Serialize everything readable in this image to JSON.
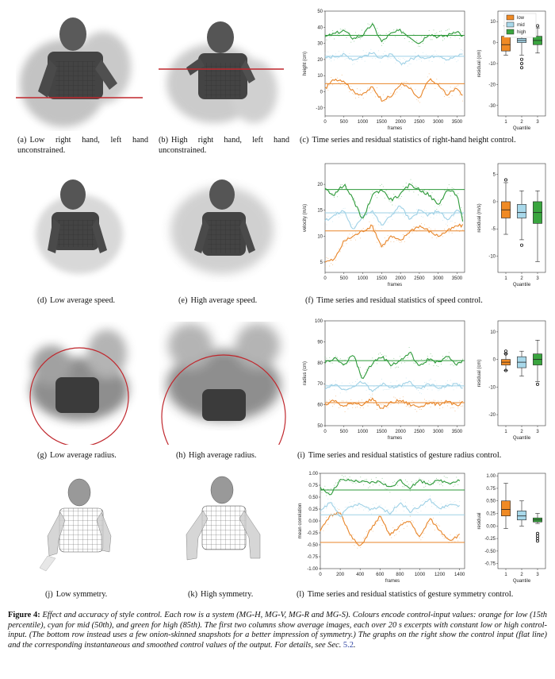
{
  "colors": {
    "low": "#e8862a",
    "mid": "#9fd1e6",
    "high": "#2e9a3a",
    "redline": "#c0272d",
    "box_low": "#f08a24",
    "box_mid": "#a8d8ea",
    "box_high": "#3aa53f"
  },
  "rows": [
    {
      "name": "height",
      "captions": {
        "a": {
          "label": "(a)",
          "text": "Low right hand, left hand unconstrained."
        },
        "b": {
          "label": "(b)",
          "text": "High right hand, left hand unconstrained."
        },
        "c": {
          "label": "(c)",
          "text": "Time series and residual statistics of right-hand height control."
        }
      }
    },
    {
      "name": "speed",
      "captions": {
        "a": {
          "label": "(d)",
          "text": "Low average speed."
        },
        "b": {
          "label": "(e)",
          "text": "High average speed."
        },
        "c": {
          "label": "(f)",
          "text": "Time series and residual statistics of speed control."
        }
      }
    },
    {
      "name": "radius",
      "captions": {
        "a": {
          "label": "(g)",
          "text": "Low average radius."
        },
        "b": {
          "label": "(h)",
          "text": "High average radius."
        },
        "c": {
          "label": "(i)",
          "text": "Time series and residual statistics of gesture radius control."
        }
      }
    },
    {
      "name": "symmetry",
      "captions": {
        "a": {
          "label": "(j)",
          "text": "Low symmetry."
        },
        "b": {
          "label": "(k)",
          "text": "High symmetry."
        },
        "c": {
          "label": "(l)",
          "text": "Time series and residual statistics of gesture symmetry control."
        }
      }
    }
  ],
  "chart_data": [
    {
      "type": "line",
      "ylabel": "height (cm)",
      "xlabel": "frames",
      "xlim": [
        0,
        3700
      ],
      "ylim": [
        -15,
        50
      ],
      "xticks": [
        "0",
        "500",
        "1000",
        "1500",
        "2000",
        "2500",
        "3000",
        "3500"
      ],
      "yticks": [
        "50",
        "40",
        "30",
        "20",
        "10",
        "0",
        "-10"
      ],
      "ytick_values": [
        50,
        40,
        30,
        20,
        10,
        0,
        -10
      ],
      "xtick_values": [
        0,
        500,
        1000,
        1500,
        2000,
        2500,
        3000,
        3500
      ],
      "controls": {
        "low": 5,
        "mid": 22,
        "high": 35
      },
      "series": [
        {
          "level": "low",
          "x": [
            0,
            250,
            500,
            750,
            1000,
            1250,
            1500,
            1750,
            2000,
            2250,
            2500,
            2750,
            3000,
            3250,
            3500,
            3650
          ],
          "y": [
            2,
            8,
            7,
            0,
            -2,
            3,
            -5,
            -3,
            5,
            2,
            -5,
            8,
            4,
            -2,
            3,
            -3
          ]
        },
        {
          "level": "mid",
          "x": [
            0,
            250,
            500,
            750,
            1000,
            1250,
            1500,
            1750,
            2000,
            2250,
            2500,
            2750,
            3000,
            3250,
            3500,
            3650
          ],
          "y": [
            21,
            22,
            23,
            20,
            22,
            24,
            21,
            23,
            17,
            20,
            22,
            21,
            23,
            20,
            22,
            24
          ]
        },
        {
          "level": "high",
          "x": [
            0,
            250,
            500,
            750,
            1000,
            1250,
            1500,
            1750,
            2000,
            2250,
            2500,
            2750,
            3000,
            3250,
            3500,
            3650
          ],
          "y": [
            34,
            36,
            38,
            33,
            35,
            42,
            31,
            36,
            38,
            34,
            30,
            36,
            34,
            35,
            38,
            34
          ]
        }
      ],
      "box": {
        "ylabel": "residual (cm)",
        "xlabel": "Quantile",
        "ylim": [
          -35,
          15
        ],
        "yticks": [
          "10",
          "0",
          "-10",
          "-20",
          "-30"
        ],
        "ytick_values": [
          10,
          0,
          -10,
          -20,
          -30
        ],
        "xticks": [
          "1",
          "2",
          "3"
        ],
        "boxes": [
          {
            "level": "low",
            "wl": -6,
            "q1": -4,
            "med": -1,
            "q3": 3,
            "wh": 8,
            "outliers": []
          },
          {
            "level": "mid",
            "wl": -6,
            "q1": 0,
            "med": 1,
            "q3": 2,
            "wh": 7,
            "outliers": [
              -8,
              -10,
              -12
            ]
          },
          {
            "level": "high",
            "wl": -5,
            "q1": -1,
            "med": 1,
            "q3": 3,
            "wh": 7,
            "outliers": [
              8
            ]
          }
        ]
      }
    },
    {
      "type": "line",
      "ylabel": "velocity (m/s)",
      "xlabel": "frames",
      "xlim": [
        0,
        3700
      ],
      "ylim": [
        3,
        24
      ],
      "xticks": [
        "0",
        "500",
        "1000",
        "1500",
        "2000",
        "2500",
        "3000",
        "3500"
      ],
      "yticks": [
        "20",
        "15",
        "10",
        "5"
      ],
      "ytick_values": [
        20,
        15,
        10,
        5
      ],
      "xtick_values": [
        0,
        500,
        1000,
        1500,
        2000,
        2500,
        3000,
        3500
      ],
      "controls": {
        "low": 11,
        "mid": 14.5,
        "high": 19
      },
      "series": [
        {
          "level": "low",
          "x": [
            0,
            250,
            500,
            750,
            1000,
            1250,
            1500,
            1750,
            2000,
            2250,
            2500,
            2750,
            3000,
            3250,
            3500,
            3650
          ],
          "y": [
            5,
            5.5,
            9,
            10,
            11,
            12,
            8,
            10,
            9,
            11,
            12,
            11,
            10,
            11,
            12,
            12
          ]
        },
        {
          "level": "mid",
          "x": [
            0,
            250,
            500,
            750,
            1000,
            1250,
            1500,
            1750,
            2000,
            2250,
            2500,
            2750,
            3000,
            3250,
            3500,
            3650
          ],
          "y": [
            13,
            14,
            15,
            11,
            14,
            15,
            12,
            14,
            16,
            13,
            15,
            14,
            15,
            13,
            15,
            14
          ]
        },
        {
          "level": "high",
          "x": [
            0,
            250,
            500,
            750,
            1000,
            1250,
            1500,
            1750,
            2000,
            2250,
            2500,
            2750,
            3000,
            3250,
            3500,
            3650
          ],
          "y": [
            19,
            18,
            20,
            17,
            13,
            18,
            19,
            17,
            18,
            20,
            19,
            18,
            16,
            19,
            18,
            13
          ]
        }
      ],
      "box": {
        "ylabel": "residual (m/s)",
        "xlabel": "Quantile",
        "ylim": [
          -13,
          7
        ],
        "yticks": [
          "5",
          "0",
          "-5",
          "-10"
        ],
        "ytick_values": [
          5,
          0,
          -5,
          -10
        ],
        "xticks": [
          "1",
          "2",
          "3"
        ],
        "boxes": [
          {
            "level": "low",
            "wl": -6,
            "q1": -3,
            "med": -1.5,
            "q3": 0,
            "wh": 3.5,
            "outliers": [
              4
            ]
          },
          {
            "level": "mid",
            "wl": -7,
            "q1": -3,
            "med": -2,
            "q3": -0.5,
            "wh": 2,
            "outliers": [
              -8
            ]
          },
          {
            "level": "high",
            "wl": -11,
            "q1": -4,
            "med": -2,
            "q3": 0,
            "wh": 2,
            "outliers": []
          }
        ]
      }
    },
    {
      "type": "line",
      "ylabel": "radius (cm)",
      "xlabel": "frames",
      "xlim": [
        0,
        3700
      ],
      "ylim": [
        50,
        100
      ],
      "xticks": [
        "0",
        "500",
        "1000",
        "1500",
        "2000",
        "2500",
        "3000",
        "3500"
      ],
      "yticks": [
        "100",
        "90",
        "80",
        "70",
        "60",
        "50"
      ],
      "ytick_values": [
        100,
        90,
        80,
        70,
        60,
        50
      ],
      "xtick_values": [
        0,
        500,
        1000,
        1500,
        2000,
        2500,
        3000,
        3500
      ],
      "controls": {
        "low": 61,
        "mid": 69,
        "high": 81
      },
      "series": [
        {
          "level": "low",
          "x": [
            0,
            250,
            500,
            750,
            1000,
            1250,
            1500,
            1750,
            2000,
            2250,
            2500,
            2750,
            3000,
            3250,
            3500,
            3650
          ],
          "y": [
            60,
            62,
            59,
            61,
            60,
            63,
            58,
            61,
            62,
            60,
            59,
            61,
            60,
            62,
            59,
            61
          ]
        },
        {
          "level": "mid",
          "x": [
            0,
            250,
            500,
            750,
            1000,
            1250,
            1500,
            1750,
            2000,
            2250,
            2500,
            2750,
            3000,
            3250,
            3500,
            3650
          ],
          "y": [
            68,
            70,
            67,
            69,
            71,
            66,
            70,
            68,
            69,
            71,
            67,
            70,
            68,
            69,
            70,
            68
          ]
        },
        {
          "level": "high",
          "x": [
            0,
            250,
            500,
            750,
            1000,
            1250,
            1500,
            1750,
            2000,
            2250,
            2500,
            2750,
            3000,
            3250,
            3500,
            3650
          ],
          "y": [
            80,
            82,
            79,
            84,
            72,
            80,
            83,
            79,
            81,
            85,
            78,
            82,
            80,
            83,
            79,
            81
          ]
        }
      ],
      "box": {
        "ylabel": "residual (cm)",
        "xlabel": "Quantile",
        "ylim": [
          -24,
          14
        ],
        "yticks": [
          "10",
          "0",
          "-10",
          "-20"
        ],
        "ytick_values": [
          10,
          0,
          -10,
          -20
        ],
        "xticks": [
          "1",
          "2",
          "3"
        ],
        "boxes": [
          {
            "level": "low",
            "wl": -4,
            "q1": -2,
            "med": -1,
            "q3": 0,
            "wh": 2,
            "outliers": [
              2,
              3,
              -4
            ]
          },
          {
            "level": "mid",
            "wl": -6,
            "q1": -3,
            "med": -1,
            "q3": 1,
            "wh": 3,
            "outliers": []
          },
          {
            "level": "high",
            "wl": -8,
            "q1": -2,
            "med": 0,
            "q3": 2,
            "wh": 7,
            "outliers": [
              -9
            ]
          }
        ]
      }
    },
    {
      "type": "line",
      "ylabel": "mean correlation",
      "xlabel": "frames",
      "xlim": [
        0,
        1450
      ],
      "ylim": [
        -1,
        1
      ],
      "xticks": [
        "0",
        "200",
        "400",
        "600",
        "800",
        "1000",
        "1200",
        "1400"
      ],
      "yticks": [
        "1.00",
        "0.75",
        "0.50",
        "0.25",
        "0.00",
        "-0.25",
        "-0.50",
        "-0.75",
        "-1.00"
      ],
      "ytick_values": [
        1,
        0.75,
        0.5,
        0.25,
        0,
        -0.25,
        -0.5,
        -0.75,
        -1
      ],
      "xtick_values": [
        0,
        200,
        400,
        600,
        800,
        1000,
        1200,
        1400
      ],
      "controls": {
        "low": -0.45,
        "mid": 0.13,
        "high": 0.65
      },
      "series": [
        {
          "level": "low",
          "x": [
            0,
            100,
            200,
            300,
            400,
            500,
            600,
            700,
            800,
            900,
            1000,
            1100,
            1200,
            1300,
            1400
          ],
          "y": [
            -0.2,
            0.1,
            0.2,
            -0.3,
            -0.55,
            -0.2,
            0.1,
            -0.3,
            -0.1,
            0.0,
            -0.35,
            0.05,
            -0.2,
            -0.4,
            -0.3
          ]
        },
        {
          "level": "mid",
          "x": [
            0,
            100,
            200,
            300,
            400,
            500,
            600,
            700,
            800,
            900,
            1000,
            1100,
            1200,
            1300,
            1400
          ],
          "y": [
            0.2,
            0.4,
            0.1,
            0.3,
            0.35,
            0.25,
            0.3,
            0.15,
            0.4,
            0.2,
            0.3,
            0.45,
            0.25,
            0.35,
            0.3
          ]
        },
        {
          "level": "high",
          "x": [
            0,
            100,
            200,
            300,
            400,
            500,
            600,
            700,
            800,
            900,
            1000,
            1100,
            1200,
            1300,
            1400
          ],
          "y": [
            0.7,
            0.55,
            0.85,
            0.85,
            0.82,
            0.8,
            0.83,
            0.7,
            0.85,
            0.7,
            0.84,
            0.78,
            0.85,
            0.8,
            0.86
          ]
        }
      ],
      "box": {
        "ylabel": "residual",
        "xlabel": "Quantile",
        "ylim": [
          -0.85,
          1.05
        ],
        "yticks": [
          "1.00",
          "0.75",
          "0.50",
          "0.25",
          "0.00",
          "-0.25",
          "-0.50",
          "-0.75"
        ],
        "ytick_values": [
          1,
          0.75,
          0.5,
          0.25,
          0,
          -0.25,
          -0.5,
          -0.75
        ],
        "xticks": [
          "1",
          "2",
          "3"
        ],
        "boxes": [
          {
            "level": "low",
            "wl": -0.05,
            "q1": 0.2,
            "med": 0.33,
            "q3": 0.5,
            "wh": 0.85,
            "outliers": []
          },
          {
            "level": "mid",
            "wl": 0,
            "q1": 0.12,
            "med": 0.2,
            "q3": 0.3,
            "wh": 0.5,
            "outliers": []
          },
          {
            "level": "high",
            "wl": 0.05,
            "q1": 0.08,
            "med": 0.12,
            "q3": 0.16,
            "wh": 0.25,
            "outliers": [
              -0.15,
              -0.2,
              -0.25,
              -0.3
            ]
          }
        ]
      }
    }
  ],
  "legend": {
    "low": "low",
    "mid": "mid",
    "high": "high"
  },
  "caption": {
    "fig_label": "Figure 4:",
    "body": "Effect and accuracy of style control. Each row is a system (MG-H, MG-V, MG-R and MG-S). Colours encode control-input values: orange for low (15th percentile), cyan for mid (50th), and green for high (85th). The first two columns show average images, each over 20 s excerpts with constant low or high control-input. (The bottom row instead uses a few onion-skinned snapshots for a better impression of symmetry.) The graphs on the right show the control input (flat line) and the corresponding instantaneous and smoothed control values of the output. For details, see Sec.",
    "ref": "5.2",
    "end": "."
  }
}
